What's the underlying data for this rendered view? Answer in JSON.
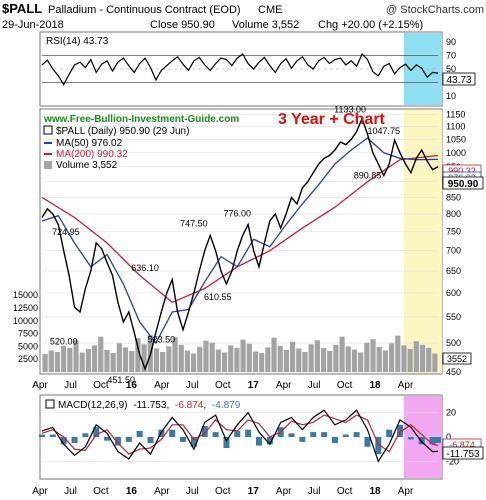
{
  "header": {
    "symbol": "$PALL",
    "description": "Palladium - Continuous Contract (EOD)",
    "exchange": "CME",
    "watermark": "@ StockCharts.com",
    "date": "29-Jun-2018",
    "close": "Close 950.90",
    "volume": "Volume 3,552",
    "change": "Chg +20.00 (+2.15%)"
  },
  "chart_data": {
    "type": "line",
    "x_labels": [
      "Apr",
      "Jul",
      "Oct",
      "16",
      "Apr",
      "Jul",
      "Oct",
      "17",
      "Apr",
      "Jul",
      "Oct",
      "18",
      "Apr"
    ],
    "rsi": {
      "label": "RSI(14) 43.73",
      "last": "43.73",
      "ticks": [
        "90",
        "70",
        "50",
        "30",
        "10"
      ],
      "ylim": [
        0,
        100
      ],
      "guides": [
        70,
        30
      ],
      "points": [
        [
          0,
          56
        ],
        [
          0.05,
          63
        ],
        [
          0.1,
          50
        ],
        [
          0.15,
          40
        ],
        [
          0.2,
          27
        ],
        [
          0.25,
          42
        ],
        [
          0.3,
          56
        ],
        [
          0.35,
          60
        ],
        [
          0.4,
          52
        ],
        [
          0.45,
          64
        ],
        [
          0.5,
          45
        ],
        [
          0.55,
          57
        ],
        [
          0.6,
          62
        ],
        [
          0.65,
          47
        ],
        [
          0.7,
          60
        ],
        [
          0.75,
          66
        ],
        [
          0.8,
          55
        ],
        [
          0.85,
          45
        ],
        [
          0.9,
          58
        ],
        [
          0.95,
          66
        ],
        [
          1,
          52
        ],
        [
          1.05,
          34
        ],
        [
          1.1,
          48
        ],
        [
          1.15,
          55
        ],
        [
          1.2,
          62
        ],
        [
          1.25,
          68
        ],
        [
          1.3,
          57
        ],
        [
          1.35,
          48
        ],
        [
          1.4,
          62
        ],
        [
          1.45,
          67
        ],
        [
          1.5,
          56
        ],
        [
          1.55,
          48
        ],
        [
          1.6,
          58
        ],
        [
          1.65,
          66
        ],
        [
          1.7,
          64
        ],
        [
          1.75,
          55
        ],
        [
          1.8,
          66
        ],
        [
          1.85,
          72
        ],
        [
          1.9,
          58
        ],
        [
          1.95,
          50
        ],
        [
          2,
          60
        ],
        [
          2.05,
          67
        ],
        [
          2.1,
          55
        ],
        [
          2.15,
          45
        ],
        [
          2.2,
          58
        ],
        [
          2.25,
          65
        ],
        [
          2.3,
          51
        ],
        [
          2.35,
          62
        ],
        [
          2.4,
          68
        ],
        [
          2.45,
          56
        ],
        [
          2.5,
          50
        ],
        [
          2.55,
          62
        ],
        [
          2.6,
          67
        ],
        [
          2.65,
          58
        ],
        [
          2.7,
          64
        ],
        [
          2.75,
          66
        ],
        [
          2.8,
          56
        ],
        [
          2.85,
          62
        ],
        [
          2.9,
          54
        ],
        [
          2.95,
          72
        ],
        [
          3,
          64
        ],
        [
          3.05,
          46
        ],
        [
          3.1,
          40
        ],
        [
          3.15,
          54
        ],
        [
          3.2,
          58
        ],
        [
          3.25,
          43
        ],
        [
          3.3,
          52
        ],
        [
          3.35,
          57
        ],
        [
          3.4,
          48
        ],
        [
          3.45,
          56
        ],
        [
          3.5,
          51
        ],
        [
          3.55,
          38
        ],
        [
          3.6,
          45
        ],
        [
          3.65,
          44
        ]
      ]
    },
    "price": {
      "legend": [
        "$PALL (Daily) 950.90 (29 Jun)",
        "MA(50) 976.02",
        "MA(200) 990.32",
        "Volume 3,552"
      ],
      "ticks": [
        "1150",
        "1100",
        "1050",
        "1000",
        "950",
        "900",
        "850",
        "800",
        "750",
        "700",
        "650",
        "600",
        "550",
        "500",
        "450"
      ],
      "last_price": "950.90",
      "ma50_last": "976.02",
      "ma200_last": "990.32",
      "ylim": [
        450,
        1160
      ],
      "log_scale": true,
      "points": [
        [
          0,
          790
        ],
        [
          0.05,
          815
        ],
        [
          0.1,
          800
        ],
        [
          0.15,
          770
        ],
        [
          0.2,
          700
        ],
        [
          0.25,
          640
        ],
        [
          0.3,
          570
        ],
        [
          0.35,
          560
        ],
        [
          0.4,
          610
        ],
        [
          0.45,
          650
        ],
        [
          0.5,
          720
        ],
        [
          0.55,
          705
        ],
        [
          0.6,
          670
        ],
        [
          0.65,
          640
        ],
        [
          0.7,
          580
        ],
        [
          0.75,
          540
        ],
        [
          0.8,
          560
        ],
        [
          0.85,
          520
        ],
        [
          0.9,
          480
        ],
        [
          0.95,
          455
        ],
        [
          1,
          480
        ],
        [
          1.05,
          520
        ],
        [
          1.1,
          560
        ],
        [
          1.15,
          600
        ],
        [
          1.2,
          630
        ],
        [
          1.25,
          560
        ],
        [
          1.3,
          525
        ],
        [
          1.35,
          560
        ],
        [
          1.4,
          600
        ],
        [
          1.45,
          650
        ],
        [
          1.5,
          700
        ],
        [
          1.55,
          740
        ],
        [
          1.6,
          700
        ],
        [
          1.65,
          650
        ],
        [
          1.7,
          620
        ],
        [
          1.75,
          650
        ],
        [
          1.8,
          700
        ],
        [
          1.85,
          740
        ],
        [
          1.9,
          770
        ],
        [
          1.95,
          700
        ],
        [
          2,
          660
        ],
        [
          2.05,
          720
        ],
        [
          2.1,
          780
        ],
        [
          2.15,
          800
        ],
        [
          2.2,
          760
        ],
        [
          2.25,
          800
        ],
        [
          2.3,
          850
        ],
        [
          2.35,
          830
        ],
        [
          2.4,
          880
        ],
        [
          2.45,
          900
        ],
        [
          2.5,
          930
        ],
        [
          2.55,
          960
        ],
        [
          2.6,
          980
        ],
        [
          2.65,
          990
        ],
        [
          2.7,
          1010
        ],
        [
          2.75,
          1040
        ],
        [
          2.8,
          1030
        ],
        [
          2.85,
          1050
        ],
        [
          2.9,
          1080
        ],
        [
          2.95,
          1133
        ],
        [
          3,
          1070
        ],
        [
          3.05,
          1000
        ],
        [
          3.1,
          960
        ],
        [
          3.15,
          920
        ],
        [
          3.2,
          960
        ],
        [
          3.25,
          1047
        ],
        [
          3.3,
          1000
        ],
        [
          3.35,
          960
        ],
        [
          3.4,
          930
        ],
        [
          3.45,
          980
        ],
        [
          3.5,
          1010
        ],
        [
          3.55,
          970
        ],
        [
          3.6,
          940
        ],
        [
          3.65,
          950.9
        ]
      ],
      "ma50": [
        [
          0,
          780
        ],
        [
          0.15,
          795
        ],
        [
          0.3,
          720
        ],
        [
          0.45,
          660
        ],
        [
          0.6,
          690
        ],
        [
          0.75,
          620
        ],
        [
          0.9,
          540
        ],
        [
          1.05,
          500
        ],
        [
          1.2,
          560
        ],
        [
          1.35,
          565
        ],
        [
          1.5,
          625
        ],
        [
          1.65,
          685
        ],
        [
          1.8,
          660
        ],
        [
          1.95,
          730
        ],
        [
          2.1,
          710
        ],
        [
          2.25,
          770
        ],
        [
          2.4,
          830
        ],
        [
          2.55,
          890
        ],
        [
          2.7,
          960
        ],
        [
          2.85,
          1010
        ],
        [
          3,
          1055
        ],
        [
          3.15,
          1000
        ],
        [
          3.3,
          980
        ],
        [
          3.45,
          975
        ],
        [
          3.65,
          976
        ]
      ],
      "ma200": [
        [
          0,
          850
        ],
        [
          0.3,
          790
        ],
        [
          0.6,
          720
        ],
        [
          0.9,
          640
        ],
        [
          1.2,
          580
        ],
        [
          1.5,
          610
        ],
        [
          1.8,
          660
        ],
        [
          2.1,
          700
        ],
        [
          2.4,
          760
        ],
        [
          2.7,
          820
        ],
        [
          3,
          900
        ],
        [
          3.3,
          975
        ],
        [
          3.65,
          990
        ]
      ],
      "volume_ticks": [
        "15000",
        "12500",
        "10000",
        "7500",
        "5000",
        "2500"
      ],
      "volume_last": "3552",
      "volume_ylim": [
        0,
        16000
      ],
      "volume_bars": [
        3500,
        4200,
        3900,
        5100,
        4700,
        6200,
        3800,
        4500,
        5200,
        6900,
        4300,
        3700,
        5600,
        4800,
        4100,
        6600,
        5400,
        7200,
        4600,
        3900,
        5000,
        6800,
        5300,
        4200,
        3600,
        4900,
        6100,
        5700,
        4400,
        3800,
        5200,
        4700,
        6300,
        5500,
        4000,
        3700,
        4800,
        6700,
        5100,
        4300,
        5900,
        4600,
        3900,
        5400,
        6200,
        4700,
        4100,
        5300,
        6900,
        5000,
        4400,
        3800,
        5700,
        6400,
        4900,
        4200,
        5600,
        7100,
        5200,
        4500,
        6000,
        5300,
        4700,
        3600
      ],
      "price_annotations": [
        {
          "text": "724.95",
          "x": 0.22,
          "y": 724.95
        },
        {
          "text": "636.10",
          "x": 0.95,
          "y": 636.1
        },
        {
          "text": "747.50",
          "x": 1.4,
          "y": 747.5
        },
        {
          "text": "776.00",
          "x": 1.8,
          "y": 776
        },
        {
          "text": "1133.00",
          "x": 2.84,
          "y": 1133
        },
        {
          "text": "1047.75",
          "x": 3.15,
          "y": 1047.75
        },
        {
          "text": "520.00",
          "x": 0.2,
          "y": 520
        },
        {
          "text": "451.50",
          "x": 0.73,
          "y": 451.5
        },
        {
          "text": "523.50",
          "x": 1.1,
          "y": 523.5
        },
        {
          "text": "610.55",
          "x": 1.62,
          "y": 610.55
        },
        {
          "text": "890.85",
          "x": 3.0,
          "y": 890.85
        }
      ],
      "url_text": "www.Free-Bullion-Investment-Guide.com",
      "chart_title": "3 Year + Chart"
    },
    "macd": {
      "label": "MACD(12,26,9)",
      "v1": "-11.753",
      "v2": "-6.874",
      "v3": "-4.879",
      "ticks": [
        "20",
        "0",
        "-20"
      ],
      "ylim": [
        -32,
        32
      ],
      "last_macd": "-11.753",
      "last_signal": "-6.874",
      "points": [
        [
          0,
          5
        ],
        [
          0.1,
          8
        ],
        [
          0.2,
          -6
        ],
        [
          0.3,
          -15
        ],
        [
          0.4,
          -8
        ],
        [
          0.5,
          10
        ],
        [
          0.6,
          3
        ],
        [
          0.7,
          -12
        ],
        [
          0.8,
          -18
        ],
        [
          0.9,
          -5
        ],
        [
          1,
          -14
        ],
        [
          1.1,
          4
        ],
        [
          1.2,
          16
        ],
        [
          1.3,
          6
        ],
        [
          1.4,
          -10
        ],
        [
          1.5,
          12
        ],
        [
          1.6,
          18
        ],
        [
          1.7,
          -3
        ],
        [
          1.8,
          10
        ],
        [
          1.9,
          20
        ],
        [
          2,
          4
        ],
        [
          2.1,
          -6
        ],
        [
          2.2,
          12
        ],
        [
          2.3,
          16
        ],
        [
          2.4,
          6
        ],
        [
          2.5,
          16
        ],
        [
          2.6,
          22
        ],
        [
          2.7,
          10
        ],
        [
          2.8,
          14
        ],
        [
          2.9,
          22
        ],
        [
          3,
          6
        ],
        [
          3.1,
          -20
        ],
        [
          3.2,
          -6
        ],
        [
          3.3,
          14
        ],
        [
          3.4,
          8
        ],
        [
          3.5,
          -4
        ],
        [
          3.6,
          -12
        ],
        [
          3.65,
          -11.753
        ]
      ],
      "signal": [
        [
          0,
          3
        ],
        [
          0.1,
          6
        ],
        [
          0.2,
          0
        ],
        [
          0.3,
          -10
        ],
        [
          0.4,
          -11
        ],
        [
          0.5,
          2
        ],
        [
          0.6,
          6
        ],
        [
          0.7,
          -5
        ],
        [
          0.8,
          -14
        ],
        [
          0.9,
          -10
        ],
        [
          1,
          -9
        ],
        [
          1.1,
          -2
        ],
        [
          1.2,
          10
        ],
        [
          1.3,
          10
        ],
        [
          1.4,
          -2
        ],
        [
          1.5,
          3
        ],
        [
          1.6,
          14
        ],
        [
          1.7,
          6
        ],
        [
          1.8,
          5
        ],
        [
          1.9,
          14
        ],
        [
          2,
          11
        ],
        [
          2.1,
          0
        ],
        [
          2.2,
          4
        ],
        [
          2.3,
          13
        ],
        [
          2.4,
          10
        ],
        [
          2.5,
          12
        ],
        [
          2.6,
          18
        ],
        [
          2.7,
          15
        ],
        [
          2.8,
          12
        ],
        [
          2.9,
          18
        ],
        [
          3,
          14
        ],
        [
          3.1,
          -6
        ],
        [
          3.2,
          -12
        ],
        [
          3.3,
          4
        ],
        [
          3.4,
          10
        ],
        [
          3.5,
          2
        ],
        [
          3.6,
          -6
        ],
        [
          3.65,
          -6.874
        ]
      ]
    },
    "colors": {
      "price": "#000000",
      "ma50": "#2b3fa8",
      "ma200": "#c0223a",
      "volume": "#a3a3a3",
      "histogram": "#3b7ba3",
      "rsi_highlight": "#8ee0f0",
      "price_highlight": "#fbf5c0",
      "macd_highlight": "#f2a8f0",
      "url": "#1a8a1a",
      "chart_title": "#e01010"
    }
  }
}
